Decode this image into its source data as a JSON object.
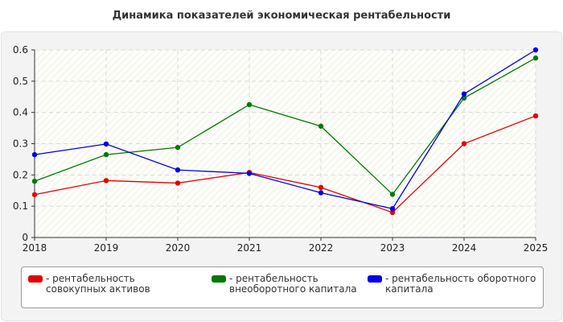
{
  "chart_data": {
    "type": "line",
    "title": "Динамика показателей экономическая рентабельности",
    "x": [
      "2018",
      "2019",
      "2020",
      "2021",
      "2022",
      "2023",
      "2024",
      "2025"
    ],
    "ylim": [
      0,
      0.6
    ],
    "yticks": [
      "0",
      "0.1",
      "0.2",
      "0.3",
      "0.4",
      "0.5",
      "0.6"
    ],
    "grid": true,
    "legend_position": "bottom",
    "series": [
      {
        "name": "- рентабельность совокупных активов",
        "color": "#e60000",
        "values": [
          0.137,
          0.182,
          0.174,
          0.208,
          0.16,
          0.08,
          0.3,
          0.389
        ]
      },
      {
        "name": "- рентабельность внеоборотного капитала",
        "color": "#007a00",
        "values": [
          0.18,
          0.265,
          0.288,
          0.425,
          0.356,
          0.138,
          0.446,
          0.574
        ]
      },
      {
        "name": "- рентабельность оборотного капитала",
        "color": "#0000e6",
        "values": [
          0.265,
          0.299,
          0.216,
          0.205,
          0.143,
          0.092,
          0.459,
          0.6
        ]
      }
    ]
  }
}
